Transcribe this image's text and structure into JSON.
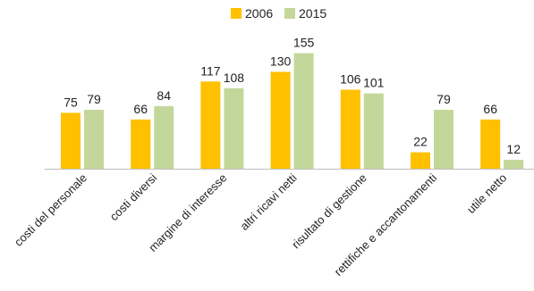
{
  "chart_data": {
    "type": "bar",
    "title": "",
    "xlabel": "",
    "ylabel": "",
    "ylim": [
      0,
      160
    ],
    "grid": false,
    "legend_position": "top-center",
    "categories": [
      "costi del personale",
      "costi diversi",
      "margine di interesse",
      "altri ricavi netti",
      "risultato di gestione",
      "rettifiche e accantonamenti",
      "utile netto"
    ],
    "series": [
      {
        "name": "2006",
        "color": "#FFC000",
        "values": [
          75,
          66,
          117,
          130,
          106,
          22,
          66
        ]
      },
      {
        "name": "2015",
        "color": "#C4D79B",
        "values": [
          79,
          84,
          108,
          155,
          101,
          79,
          12
        ]
      }
    ]
  }
}
